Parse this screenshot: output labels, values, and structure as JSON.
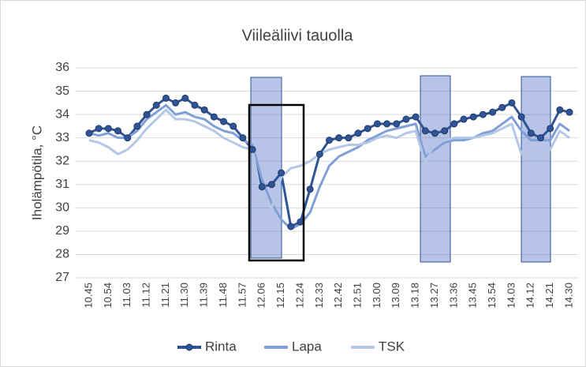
{
  "chart_data": {
    "type": "line",
    "title": "Viileäliivi tauolla",
    "y_label": "Iholämpötila, °C",
    "categories": [
      "10.45",
      null,
      "10.54",
      null,
      "11.03",
      null,
      "11.12",
      null,
      "11.21",
      null,
      "11.30",
      null,
      "11.39",
      null,
      "11.48",
      null,
      "11.57",
      null,
      "12.06",
      null,
      "12.15",
      null,
      "12.24",
      null,
      "12.33",
      null,
      "12.42",
      null,
      "12.51",
      null,
      "13.00",
      null,
      "13.09",
      null,
      "13.18",
      null,
      "13.27",
      null,
      "13.36",
      null,
      "13.45",
      null,
      "13.54",
      null,
      "14.03",
      null,
      "14.12",
      null,
      "14.21",
      null,
      "14.30"
    ],
    "series": [
      {
        "name": "Rinta",
        "color": "#2f5597",
        "markers": true,
        "values": [
          33.2,
          33.4,
          33.4,
          33.3,
          33.0,
          33.5,
          34.0,
          34.4,
          34.7,
          34.5,
          34.7,
          34.4,
          34.2,
          33.9,
          33.7,
          33.5,
          33.0,
          32.5,
          30.9,
          31.0,
          31.5,
          29.2,
          29.4,
          30.8,
          32.3,
          32.9,
          33.0,
          33.0,
          33.2,
          33.4,
          33.6,
          33.6,
          33.6,
          33.8,
          33.9,
          33.3,
          33.2,
          33.3,
          33.6,
          33.8,
          33.9,
          34.0,
          34.1,
          34.3,
          34.5,
          33.9,
          33.2,
          33.0,
          33.4,
          34.2,
          34.1
        ]
      },
      {
        "name": "Lapa",
        "color": "#7f9fd6",
        "markers": false,
        "values": [
          33.2,
          33.1,
          33.2,
          33.0,
          33.0,
          33.3,
          33.8,
          34.1,
          34.4,
          34.0,
          34.1,
          33.9,
          33.8,
          33.5,
          33.3,
          33.2,
          32.9,
          32.7,
          31.2,
          30.2,
          29.5,
          29.1,
          29.3,
          29.8,
          30.9,
          31.8,
          32.2,
          32.4,
          32.6,
          32.9,
          33.1,
          33.3,
          33.4,
          33.5,
          33.6,
          32.2,
          32.5,
          32.8,
          32.9,
          32.9,
          33.0,
          33.2,
          33.3,
          33.6,
          33.9,
          33.3,
          32.9,
          32.9,
          32.9,
          33.6,
          33.3
        ]
      },
      {
        "name": "TSK",
        "color": "#b4c7e7",
        "markers": false,
        "values": [
          32.9,
          32.8,
          32.6,
          32.3,
          32.5,
          32.9,
          33.4,
          33.8,
          34.2,
          33.8,
          33.8,
          33.7,
          33.5,
          33.3,
          33.0,
          32.8,
          32.6,
          32.5,
          30.3,
          30.0,
          31.3,
          31.7,
          31.8,
          32.0,
          32.3,
          32.5,
          32.6,
          32.7,
          32.7,
          32.8,
          33.0,
          33.1,
          33.0,
          33.2,
          33.3,
          31.9,
          32.8,
          32.9,
          33.0,
          33.0,
          33.0,
          33.1,
          33.2,
          33.4,
          33.6,
          32.3,
          32.2,
          32.1,
          32.5,
          33.3,
          33.0
        ]
      }
    ],
    "ylim": [
      27,
      36
    ],
    "yticks": [
      27,
      28,
      29,
      30,
      31,
      32,
      33,
      34,
      35,
      36
    ],
    "grid": true,
    "legend": "bottom"
  }
}
